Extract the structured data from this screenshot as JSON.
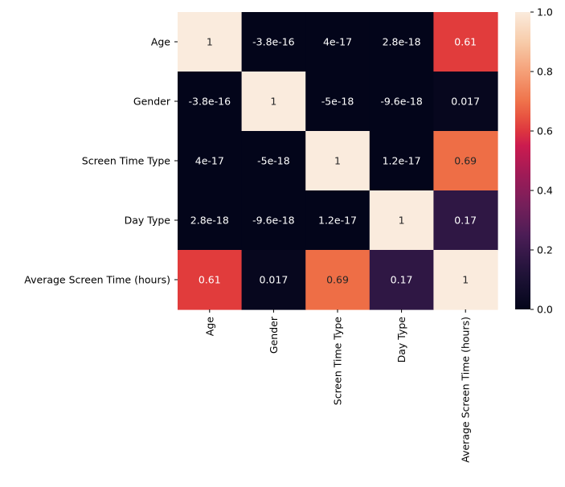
{
  "chart_data": {
    "type": "heatmap",
    "title": "",
    "xlabel": "",
    "ylabel": "",
    "rows": [
      "Age",
      "Gender",
      "Screen Time Type",
      "Day Type",
      "Average Screen Time (hours)"
    ],
    "columns": [
      "Age",
      "Gender",
      "Screen Time Type",
      "Day Type",
      "Average Screen Time (hours)"
    ],
    "values": [
      [
        1,
        -3.8e-16,
        4e-17,
        2.8e-18,
        0.61
      ],
      [
        -3.8e-16,
        1,
        -5e-18,
        -9.6e-18,
        0.017
      ],
      [
        4e-17,
        -5e-18,
        1,
        1.2e-17,
        0.69
      ],
      [
        2.8e-18,
        -9.6e-18,
        1.2e-17,
        1,
        0.17
      ],
      [
        0.61,
        0.017,
        0.69,
        0.17,
        1
      ]
    ],
    "annotations": [
      [
        "1",
        "-3.8e-16",
        "4e-17",
        "2.8e-18",
        "0.61"
      ],
      [
        "-3.8e-16",
        "1",
        "-5e-18",
        "-9.6e-18",
        "0.017"
      ],
      [
        "4e-17",
        "-5e-18",
        "1",
        "1.2e-17",
        "0.69"
      ],
      [
        "2.8e-18",
        "-9.6e-18",
        "1.2e-17",
        "1",
        "0.17"
      ],
      [
        "0.61",
        "0.017",
        "0.69",
        "0.17",
        "1"
      ]
    ],
    "colorbar": {
      "min": 0.0,
      "max": 1.0,
      "ticks": [
        "0.0",
        "0.2",
        "0.4",
        "0.6",
        "0.8",
        "1.0"
      ],
      "colormap": "rocket"
    },
    "grid": false,
    "legend": "colorbar-right"
  }
}
